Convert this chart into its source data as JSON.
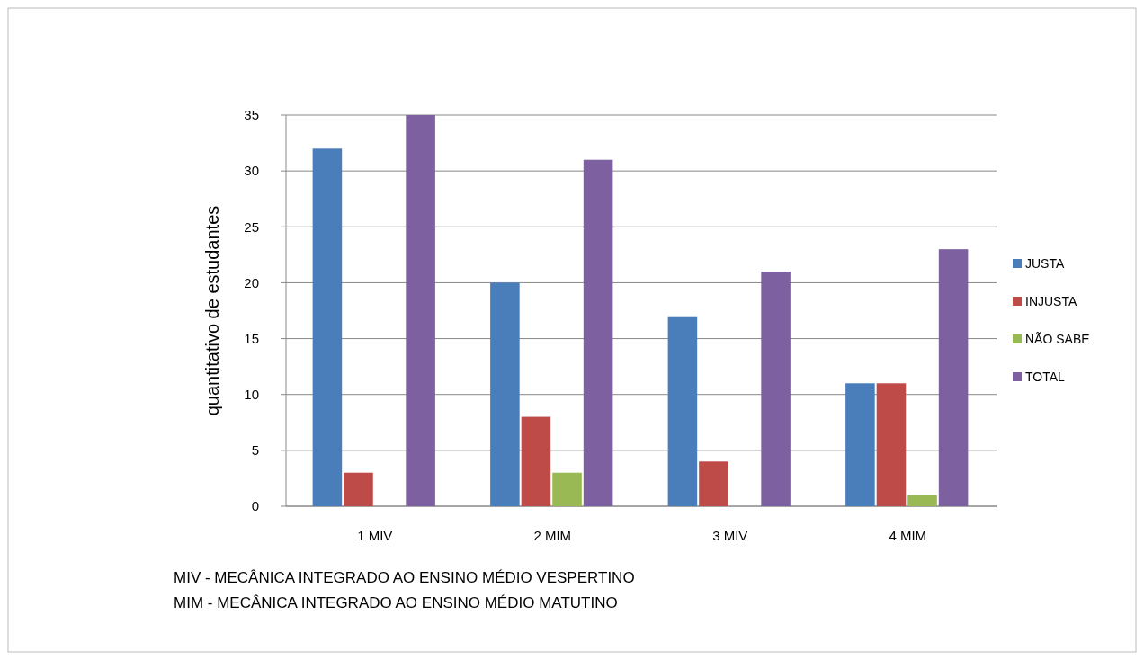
{
  "chart_data": {
    "type": "bar",
    "ylabel": "quantitativo  de estudantes",
    "categories": [
      "1 MIV",
      "2 MIM",
      "3 MIV",
      "4 MIM"
    ],
    "series": [
      {
        "name": "JUSTA",
        "color": "#4a7ebb",
        "values": [
          32,
          20,
          17,
          11
        ]
      },
      {
        "name": "INJUSTA",
        "color": "#be4b48",
        "values": [
          3,
          8,
          4,
          11
        ]
      },
      {
        "name": "NÃO SABE",
        "color": "#98b954",
        "values": [
          0,
          3,
          0,
          1
        ]
      },
      {
        "name": "TOTAL",
        "color": "#7d60a0",
        "values": [
          35,
          31,
          21,
          23
        ]
      }
    ],
    "ylim": [
      0,
      35
    ],
    "yticks": [
      0,
      5,
      10,
      15,
      20,
      25,
      30,
      35
    ],
    "grid": "y",
    "legend": "right",
    "annotations": [
      "MIV - MECÂNICA INTEGRADO AO ENSINO MÉDIO VESPERTINO",
      "MIM - MECÂNICA INTEGRADO AO ENSINO MÉDIO MATUTINO"
    ]
  }
}
